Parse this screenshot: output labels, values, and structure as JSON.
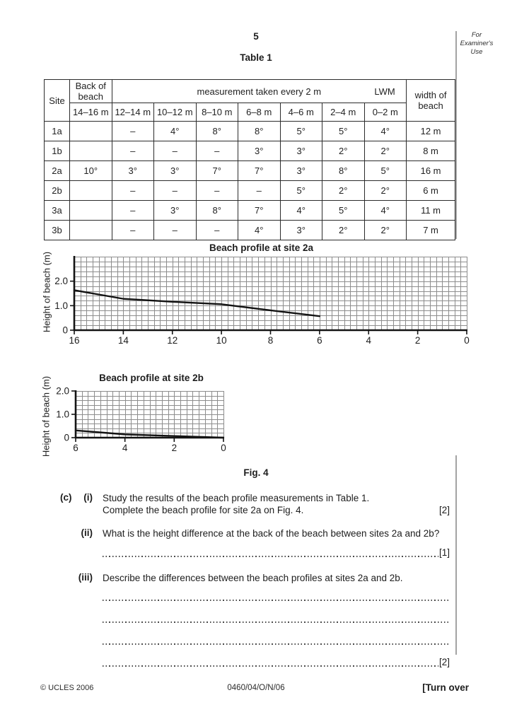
{
  "page": {
    "number": "5",
    "table_caption": "Table 1",
    "fig_caption": "Fig. 4",
    "examiner_note": "For\nExaminer's\nUse"
  },
  "table1": {
    "header": {
      "site": "Site",
      "back_of_beach": "Back of beach",
      "measurement": "measurement taken every 2 m",
      "lwm": "LWM",
      "width": "width of beach",
      "distance_cols": [
        "14–16 m",
        "12–14 m",
        "10–12 m",
        "8–10 m",
        "6–8 m",
        "4–6 m",
        "2–4 m",
        "0–2 m"
      ]
    },
    "rows": [
      {
        "site": "1a",
        "values": [
          "",
          "–",
          "4°",
          "8°",
          "8°",
          "5°",
          "5°",
          "4°"
        ],
        "width": "12 m"
      },
      {
        "site": "1b",
        "values": [
          "",
          "–",
          "–",
          "–",
          "3°",
          "3°",
          "2°",
          "2°"
        ],
        "width": "8 m"
      },
      {
        "site": "2a",
        "values": [
          "10°",
          "3°",
          "3°",
          "7°",
          "7°",
          "3°",
          "8°",
          "5°"
        ],
        "width": "16 m"
      },
      {
        "site": "2b",
        "values": [
          "",
          "–",
          "–",
          "–",
          "–",
          "5°",
          "2°",
          "2°"
        ],
        "width": "6 m"
      },
      {
        "site": "3a",
        "values": [
          "",
          "–",
          "3°",
          "8°",
          "7°",
          "4°",
          "5°",
          "4°"
        ],
        "width": "11 m"
      },
      {
        "site": "3b",
        "values": [
          "",
          "–",
          "–",
          "–",
          "4°",
          "3°",
          "2°",
          "2°"
        ],
        "width": "7 m"
      }
    ]
  },
  "chart_data": [
    {
      "type": "line",
      "title": "Beach profile at site 2a",
      "xlabel": "",
      "ylabel": "Height of beach (m)",
      "x": [
        16,
        14,
        12,
        10,
        8,
        6
      ],
      "y": [
        1.63,
        1.28,
        1.16,
        1.06,
        0.81,
        0.57
      ],
      "xlim": [
        16,
        0
      ],
      "ylim": [
        0,
        3
      ],
      "xticks": [
        16,
        14,
        12,
        10,
        8,
        6,
        4,
        2,
        0
      ],
      "yticks": [
        {
          "v": 0,
          "label": "0"
        },
        {
          "v": 1,
          "label": "1.0"
        },
        {
          "v": 2,
          "label": "2.0"
        }
      ],
      "grid": {
        "dx": 0.25,
        "dy": 0.2
      }
    },
    {
      "type": "line",
      "title": "Beach profile at site 2b",
      "xlabel": "",
      "ylabel": "Height of beach (m)",
      "x": [
        6,
        4,
        2,
        0
      ],
      "y": [
        0.31,
        0.14,
        0.07,
        0
      ],
      "xlim": [
        6,
        0
      ],
      "ylim": [
        0,
        2
      ],
      "xticks": [
        6,
        4,
        2,
        0
      ],
      "yticks": [
        {
          "v": 0,
          "label": "0"
        },
        {
          "v": 1,
          "label": "1.0"
        },
        {
          "v": 2,
          "label": "2.0"
        }
      ],
      "grid": {
        "dx": 0.25,
        "dy": 0.2
      }
    }
  ],
  "questions": {
    "c_label": "(c)",
    "i": {
      "label": "(i)",
      "line1": "Study the results of the beach profile measurements in Table 1.",
      "line2": "Complete the beach profile for site 2a on Fig. 4.",
      "mark": "[2]"
    },
    "ii": {
      "label": "(ii)",
      "text": "What is the height difference at the back of the beach between sites 2a and 2b?",
      "mark": "[1]"
    },
    "iii": {
      "label": "(iii)",
      "text": "Describe the differences between the beach profiles at sites 2a and 2b.",
      "mark": "[2]"
    }
  },
  "footer": {
    "copyright": "© UCLES 2006",
    "paper_code": "0460/04/O/N/06",
    "turn_over": "[Turn over"
  }
}
